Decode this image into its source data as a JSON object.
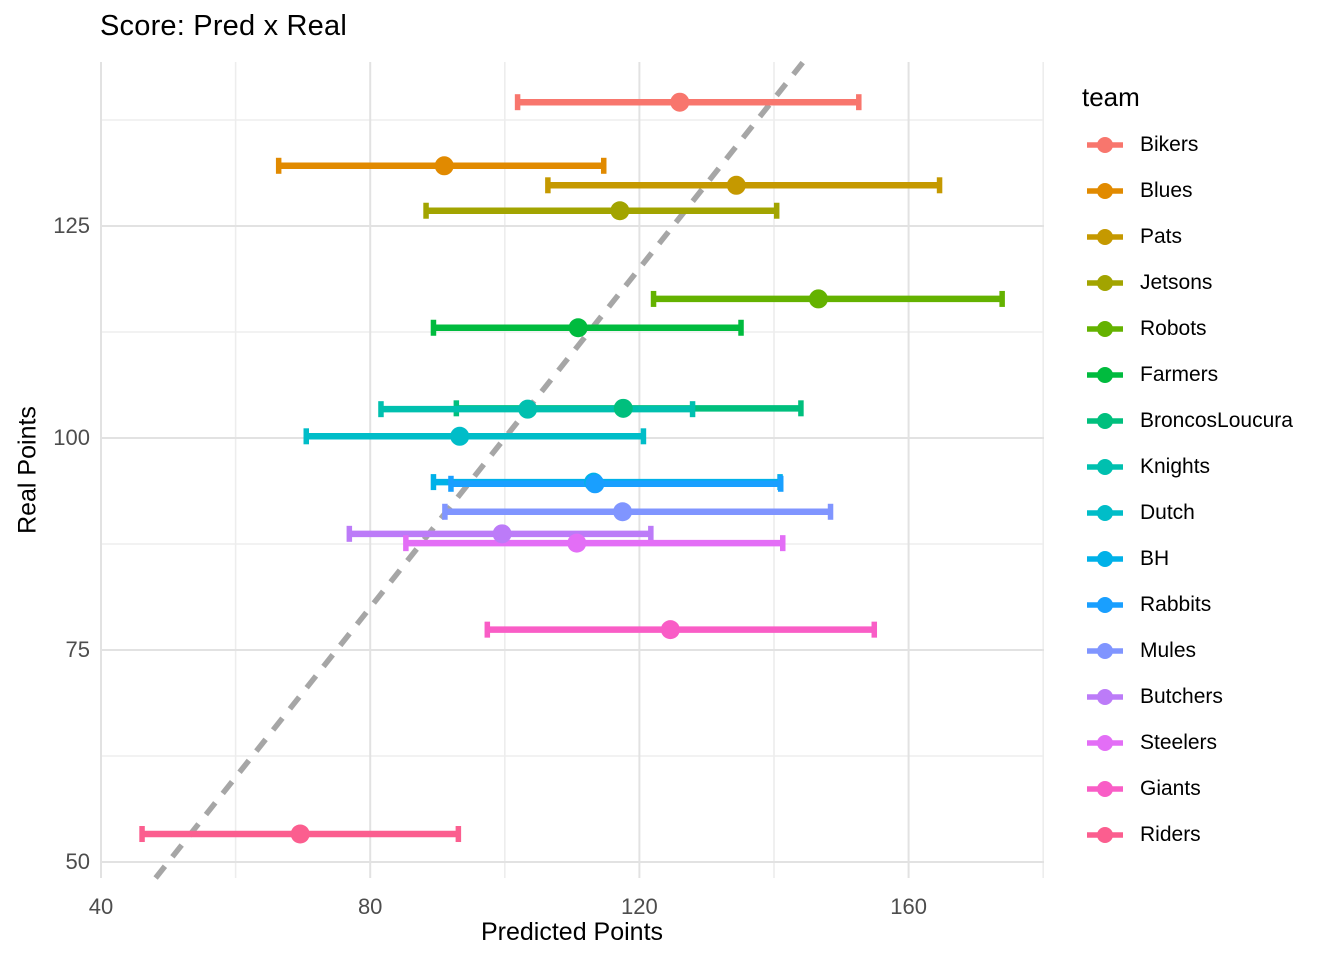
{
  "chart_data": {
    "type": "pointrange-errorbar-horizontal",
    "title": "Score: Pred x Real",
    "xlabel": "Predicted Points",
    "ylabel": "Real Points",
    "x_axis": {
      "range": [
        40,
        180
      ],
      "major_ticks": [
        40,
        80,
        120,
        160
      ],
      "minor_ticks": [
        60,
        100,
        140,
        180
      ]
    },
    "y_axis": {
      "range": [
        48,
        144
      ],
      "major_ticks": [
        125,
        100,
        75,
        50
      ],
      "minor_ticks": [
        137.5,
        112.5,
        87.5,
        62.5
      ]
    },
    "grid": "major+minor, light gray on white",
    "reference_line": {
      "type": "identity y=x",
      "style": "dashed",
      "color": "#A6A6A6"
    },
    "legend": {
      "title": "team",
      "position": "right"
    },
    "series": [
      {
        "team": "Bikers",
        "color": "#F8766D",
        "real": 139.6,
        "predicted": 126.0,
        "predicted_min": 101.9,
        "predicted_max": 152.6
      },
      {
        "team": "Blues",
        "color": "#E18A00",
        "real": 132.1,
        "predicted": 91.0,
        "predicted_min": 66.4,
        "predicted_max": 114.7
      },
      {
        "team": "Pats",
        "color": "#C59900",
        "real": 129.8,
        "predicted": 134.4,
        "predicted_min": 106.4,
        "predicted_max": 164.6
      },
      {
        "team": "Jetsons",
        "color": "#A2A400",
        "real": 126.8,
        "predicted": 117.1,
        "predicted_min": 88.3,
        "predicted_max": 140.4
      },
      {
        "team": "Robots",
        "color": "#64B200",
        "real": 116.4,
        "predicted": 146.6,
        "predicted_min": 122.1,
        "predicted_max": 173.9
      },
      {
        "team": "Farmers",
        "color": "#00BB3E",
        "real": 113.0,
        "predicted": 110.9,
        "predicted_min": 89.4,
        "predicted_max": 135.1
      },
      {
        "team": "BroncosLoucura",
        "color": "#00BF7D",
        "real": 103.5,
        "predicted": 117.6,
        "predicted_min": 92.8,
        "predicted_max": 144.0
      },
      {
        "team": "Knights",
        "color": "#00C0AF",
        "real": 103.4,
        "predicted": 103.4,
        "predicted_min": 81.6,
        "predicted_max": 127.9
      },
      {
        "team": "Dutch",
        "color": "#00BDC8",
        "real": 100.2,
        "predicted": 93.3,
        "predicted_min": 70.5,
        "predicted_max": 120.6
      },
      {
        "team": "BH",
        "color": "#00B1E8",
        "real": 94.8,
        "predicted": 113.2,
        "predicted_min": 89.4,
        "predicted_max": 140.9
      },
      {
        "team": "Rabbits",
        "color": "#199FFF",
        "real": 94.6,
        "predicted": 113.4,
        "predicted_min": 92.0,
        "predicted_max": 141.0
      },
      {
        "team": "Mules",
        "color": "#8095FF",
        "real": 91.3,
        "predicted": 117.5,
        "predicted_min": 91.1,
        "predicted_max": 148.4
      },
      {
        "team": "Butchers",
        "color": "#BC7BF8",
        "real": 88.7,
        "predicted": 99.6,
        "predicted_min": 76.9,
        "predicted_max": 121.7
      },
      {
        "team": "Steelers",
        "color": "#E36EF6",
        "real": 87.6,
        "predicted": 110.7,
        "predicted_min": 85.3,
        "predicted_max": 141.3
      },
      {
        "team": "Giants",
        "color": "#F95DC6",
        "real": 77.4,
        "predicted": 124.6,
        "predicted_min": 97.4,
        "predicted_max": 154.9
      },
      {
        "team": "Riders",
        "color": "#FB5E8F",
        "real": 53.3,
        "predicted": 69.6,
        "predicted_min": 46.1,
        "predicted_max": 93.1
      }
    ]
  }
}
